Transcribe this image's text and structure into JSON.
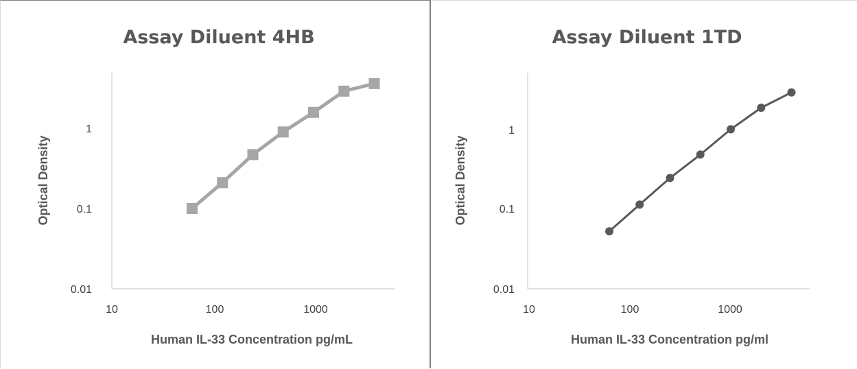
{
  "chart_data": [
    {
      "type": "line",
      "title": "Assay Diluent 4HB",
      "xlabel": "Human IL-33 Concentration pg/mL",
      "ylabel": "Optical Density",
      "xscale": "log",
      "yscale": "log",
      "xlim": [
        10,
        5000
      ],
      "ylim": [
        0.01,
        5
      ],
      "xticks": [
        "10",
        "100",
        "1000"
      ],
      "yticks": [
        "0.01",
        "0.1",
        "1"
      ],
      "grid": false,
      "legend": "none",
      "marker": "square",
      "color": "#a6a6a6",
      "series": [
        {
          "x": [
            62.5,
            125,
            250,
            500,
            1000,
            2000,
            4000
          ],
          "values": [
            0.1,
            0.21,
            0.47,
            0.9,
            1.58,
            2.9,
            3.6
          ]
        }
      ]
    },
    {
      "type": "line",
      "title": "Assay Diluent 1TD",
      "xlabel": "Human IL-33 Concentration pg/ml",
      "ylabel": "Optical Density",
      "xscale": "log",
      "yscale": "log",
      "xlim": [
        10,
        5000
      ],
      "ylim": [
        0.01,
        5
      ],
      "xticks": [
        "10",
        "100",
        "1000"
      ],
      "yticks": [
        "0.01",
        "0.1",
        "1"
      ],
      "grid": false,
      "legend": "none",
      "marker": "circle",
      "color": "#595959",
      "series": [
        {
          "x": [
            62.5,
            125,
            250,
            500,
            1000,
            2000,
            4000
          ],
          "values": [
            0.052,
            0.112,
            0.24,
            0.47,
            0.97,
            1.8,
            2.8
          ]
        }
      ]
    }
  ]
}
